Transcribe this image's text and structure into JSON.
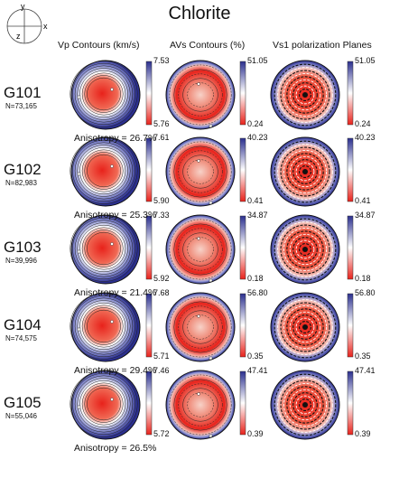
{
  "title": "Chlorite",
  "axes": {
    "y": "y",
    "z": "z",
    "x": "x"
  },
  "columns": [
    "Vp Contours (km/s)",
    "AVs Contours (%)",
    "Vs1 polarization Planes"
  ],
  "samples": [
    {
      "name": "G101",
      "n": "N=73,165",
      "anisotropy": "Anisotropy = 26.7%",
      "vp": {
        "max": "7.53",
        "min": "5.76"
      },
      "avs": {
        "max": "51.05",
        "min": "0.24"
      },
      "vs1": {
        "max": "51.05",
        "min": "0.24"
      }
    },
    {
      "name": "G102",
      "n": "N=82,983",
      "anisotropy": "Anisotropy = 25.3%",
      "vp": {
        "max": "7.61",
        "min": "5.90"
      },
      "avs": {
        "max": "40.23",
        "min": "0.41"
      },
      "vs1": {
        "max": "40.23",
        "min": "0.41"
      }
    },
    {
      "name": "G103",
      "n": "N=39,996",
      "anisotropy": "Anisotropy = 21.4%",
      "vp": {
        "max": "7.33",
        "min": "5.92"
      },
      "avs": {
        "max": "34.87",
        "min": "0.18"
      },
      "vs1": {
        "max": "34.87",
        "min": "0.18"
      }
    },
    {
      "name": "G104",
      "n": "N=74,575",
      "anisotropy": "Anisotropy = 29.4%",
      "vp": {
        "max": "7.68",
        "min": "5.71"
      },
      "avs": {
        "max": "56.80",
        "min": "0.35"
      },
      "vs1": {
        "max": "56.80",
        "min": "0.35"
      }
    },
    {
      "name": "G105",
      "n": "N=55,046",
      "anisotropy": "Anisotropy = 26.5%",
      "vp": {
        "max": "7.46",
        "min": "5.72"
      },
      "avs": {
        "max": "47.41",
        "min": "0.39"
      },
      "vs1": {
        "max": "47.41",
        "min": "0.39"
      }
    }
  ],
  "colors": {
    "high": "#2b2f8f",
    "mid": "#ffffff",
    "low": "#e8221b"
  }
}
